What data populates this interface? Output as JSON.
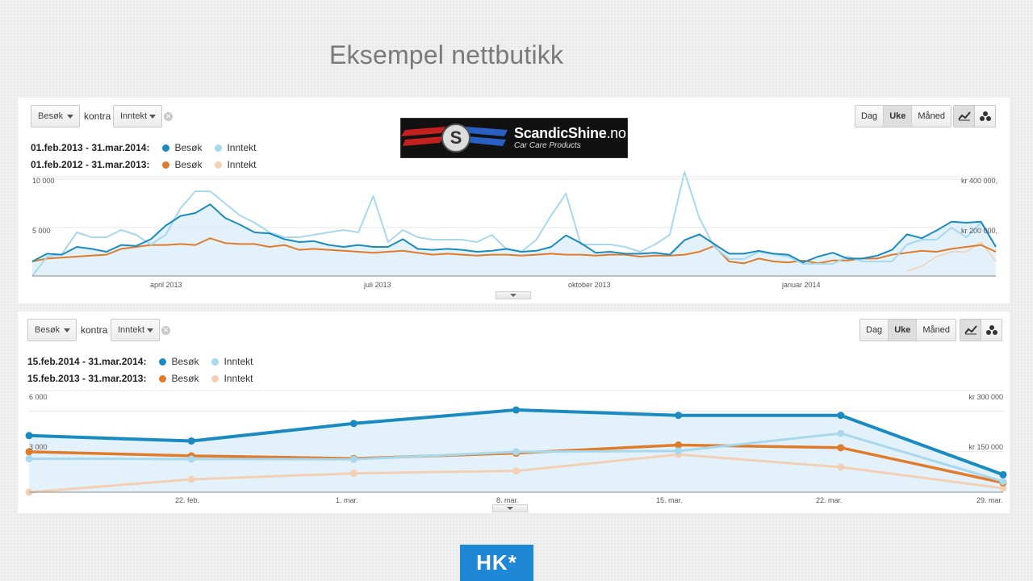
{
  "slide": {
    "title": "Eksempel nettbutikk"
  },
  "logo_top": {
    "brand": "ScandicShine",
    "tld": ".no",
    "tagline": "Car Care Products"
  },
  "logo_bottom": {
    "text": "HK*"
  },
  "panels": [
    {
      "metric1": "Besøk",
      "kontra": "kontra",
      "metric2": "Inntekt",
      "granularity": [
        "Dag",
        "Uke",
        "Måned"
      ],
      "active_granularity": "Uke",
      "legend": [
        {
          "date": "01.feb.2013 - 31.mar.2014:",
          "s1": "Besøk",
          "s2": "Inntekt",
          "c1": "#1a8bc0",
          "c2": "#a8d8ee"
        },
        {
          "date": "01.feb.2012 - 31.mar.2013:",
          "s1": "Besøk",
          "s2": "Inntekt",
          "c1": "#e07b2a",
          "c2": "#f3d0b5"
        }
      ],
      "y_left": [
        "10 000",
        "5 000"
      ],
      "y_right": [
        "kr 400 000,",
        "kr 200 000,"
      ],
      "x_labels": [
        "april 2013",
        "juli 2013",
        "oktober 2013",
        "januar 2014"
      ]
    },
    {
      "metric1": "Besøk",
      "kontra": "kontra",
      "metric2": "Inntekt",
      "granularity": [
        "Dag",
        "Uke",
        "Måned"
      ],
      "active_granularity": "Uke",
      "legend": [
        {
          "date": "15.feb.2014 - 31.mar.2014:",
          "s1": "Besøk",
          "s2": "Inntekt",
          "c1": "#1a8bc0",
          "c2": "#a8d8ee"
        },
        {
          "date": "15.feb.2013 - 31.mar.2013:",
          "s1": "Besøk",
          "s2": "Inntekt",
          "c1": "#e07b2a",
          "c2": "#f3d0b5"
        }
      ],
      "y_left": [
        "6 000",
        "3 000"
      ],
      "y_right": [
        "kr 300 000",
        "kr 150 000"
      ],
      "x_labels": [
        "22. feb.",
        "1. mar.",
        "8. mar.",
        "15. mar.",
        "22. mar.",
        "29. mar."
      ]
    }
  ],
  "chart_data": [
    {
      "type": "line",
      "xlabel": "",
      "ylabel": "",
      "ylim_left": [
        0,
        10000
      ],
      "ylim_right": [
        0,
        400000
      ],
      "x_ticks": [
        "april 2013",
        "juli 2013",
        "oktober 2013",
        "januar 2014"
      ],
      "series": [
        {
          "name": "Besøk",
          "period": "01.feb.2013 - 31.mar.2014",
          "axis": "left",
          "values": [
            1500,
            2300,
            2200,
            3000,
            2800,
            2500,
            3200,
            3100,
            3800,
            5200,
            6200,
            6500,
            7400,
            6000,
            5300,
            4500,
            4400,
            3800,
            3500,
            3600,
            3200,
            3000,
            3200,
            3000,
            3000,
            3800,
            2800,
            2700,
            2800,
            2700,
            2500,
            2600,
            2800,
            2500,
            2600,
            3000,
            4200,
            3400,
            2400,
            2500,
            2300,
            2300,
            2400,
            2200,
            3700,
            4300,
            3300,
            2300,
            2300,
            2600,
            2300,
            2200,
            1400,
            2000,
            2400,
            1800,
            1800,
            2100,
            2700,
            4300,
            3900,
            4700,
            5600,
            5500,
            5600,
            3000
          ]
        },
        {
          "name": "Inntekt",
          "period": "01.feb.2013 - 31.mar.2014",
          "axis": "right",
          "values": [
            0,
            80000,
            90000,
            180000,
            160000,
            160000,
            190000,
            170000,
            130000,
            170000,
            280000,
            350000,
            350000,
            300000,
            250000,
            220000,
            180000,
            160000,
            160000,
            170000,
            180000,
            190000,
            180000,
            330000,
            140000,
            190000,
            160000,
            150000,
            150000,
            150000,
            140000,
            170000,
            110000,
            100000,
            150000,
            250000,
            340000,
            130000,
            130000,
            130000,
            120000,
            100000,
            130000,
            170000,
            430000,
            240000,
            120000,
            70000,
            70000,
            100000,
            90000,
            80000,
            50000,
            50000,
            50000,
            80000,
            60000,
            60000,
            60000,
            130000,
            150000,
            150000,
            200000,
            160000,
            220000,
            120000
          ]
        },
        {
          "name": "Besøk",
          "period": "01.feb.2012 - 31.mar.2013",
          "axis": "left",
          "values": [
            1500,
            1800,
            1900,
            2000,
            2100,
            2200,
            2800,
            3000,
            3200,
            3200,
            3300,
            3200,
            3900,
            3400,
            3300,
            3300,
            3000,
            3200,
            2700,
            2800,
            2700,
            2600,
            2500,
            2400,
            2500,
            2600,
            2400,
            2200,
            2300,
            2200,
            2100,
            2200,
            2200,
            2100,
            2200,
            2300,
            2200,
            2200,
            2100,
            2200,
            2200,
            2000,
            2100,
            2100,
            2200,
            2500,
            3100,
            1500,
            1300,
            1800,
            1500,
            1400,
            1600,
            1300,
            1600,
            1600,
            1800,
            1800,
            2200,
            2400,
            2600,
            2500,
            2800,
            3000,
            3200,
            2500
          ]
        },
        {
          "name": "Inntekt",
          "period": "01.feb.2012 - 31.mar.2013",
          "axis": "right",
          "values": [
            null,
            null,
            null,
            null,
            null,
            null,
            null,
            null,
            null,
            null,
            null,
            null,
            null,
            null,
            null,
            null,
            null,
            null,
            null,
            null,
            null,
            null,
            null,
            null,
            null,
            null,
            null,
            null,
            null,
            null,
            null,
            null,
            null,
            null,
            null,
            null,
            null,
            null,
            null,
            null,
            null,
            null,
            null,
            null,
            null,
            null,
            null,
            null,
            null,
            null,
            null,
            null,
            null,
            null,
            null,
            null,
            null,
            null,
            null,
            20000,
            40000,
            80000,
            100000,
            100000,
            140000,
            60000
          ]
        }
      ]
    },
    {
      "type": "line",
      "xlabel": "",
      "ylabel": "",
      "ylim_left": [
        0,
        7000
      ],
      "ylim_right": [
        0,
        350000
      ],
      "categories": [
        "15. feb.",
        "22. feb.",
        "1. mar.",
        "8. mar.",
        "15. mar.",
        "22. mar.",
        "29. mar."
      ],
      "x_ticks": [
        "22. feb.",
        "1. mar.",
        "8. mar.",
        "15. mar.",
        "22. mar.",
        "29. mar."
      ],
      "series": [
        {
          "name": "Besøk",
          "period": "15.feb.2014 - 31.mar.2014",
          "axis": "left",
          "values": [
            4200,
            3800,
            5100,
            6100,
            5700,
            5700,
            1300
          ]
        },
        {
          "name": "Inntekt",
          "period": "15.feb.2014 - 31.mar.2014",
          "axis": "right",
          "values": [
            124000,
            123000,
            122000,
            150000,
            153000,
            218000,
            40000
          ]
        },
        {
          "name": "Besøk",
          "period": "15.feb.2013 - 31.mar.2013",
          "axis": "left",
          "values": [
            3000,
            2700,
            2500,
            2900,
            3500,
            3300,
            700
          ]
        },
        {
          "name": "Inntekt",
          "period": "15.feb.2013 - 31.mar.2013",
          "axis": "right",
          "values": [
            0,
            48000,
            70000,
            79000,
            140000,
            93000,
            15000
          ]
        }
      ]
    }
  ]
}
